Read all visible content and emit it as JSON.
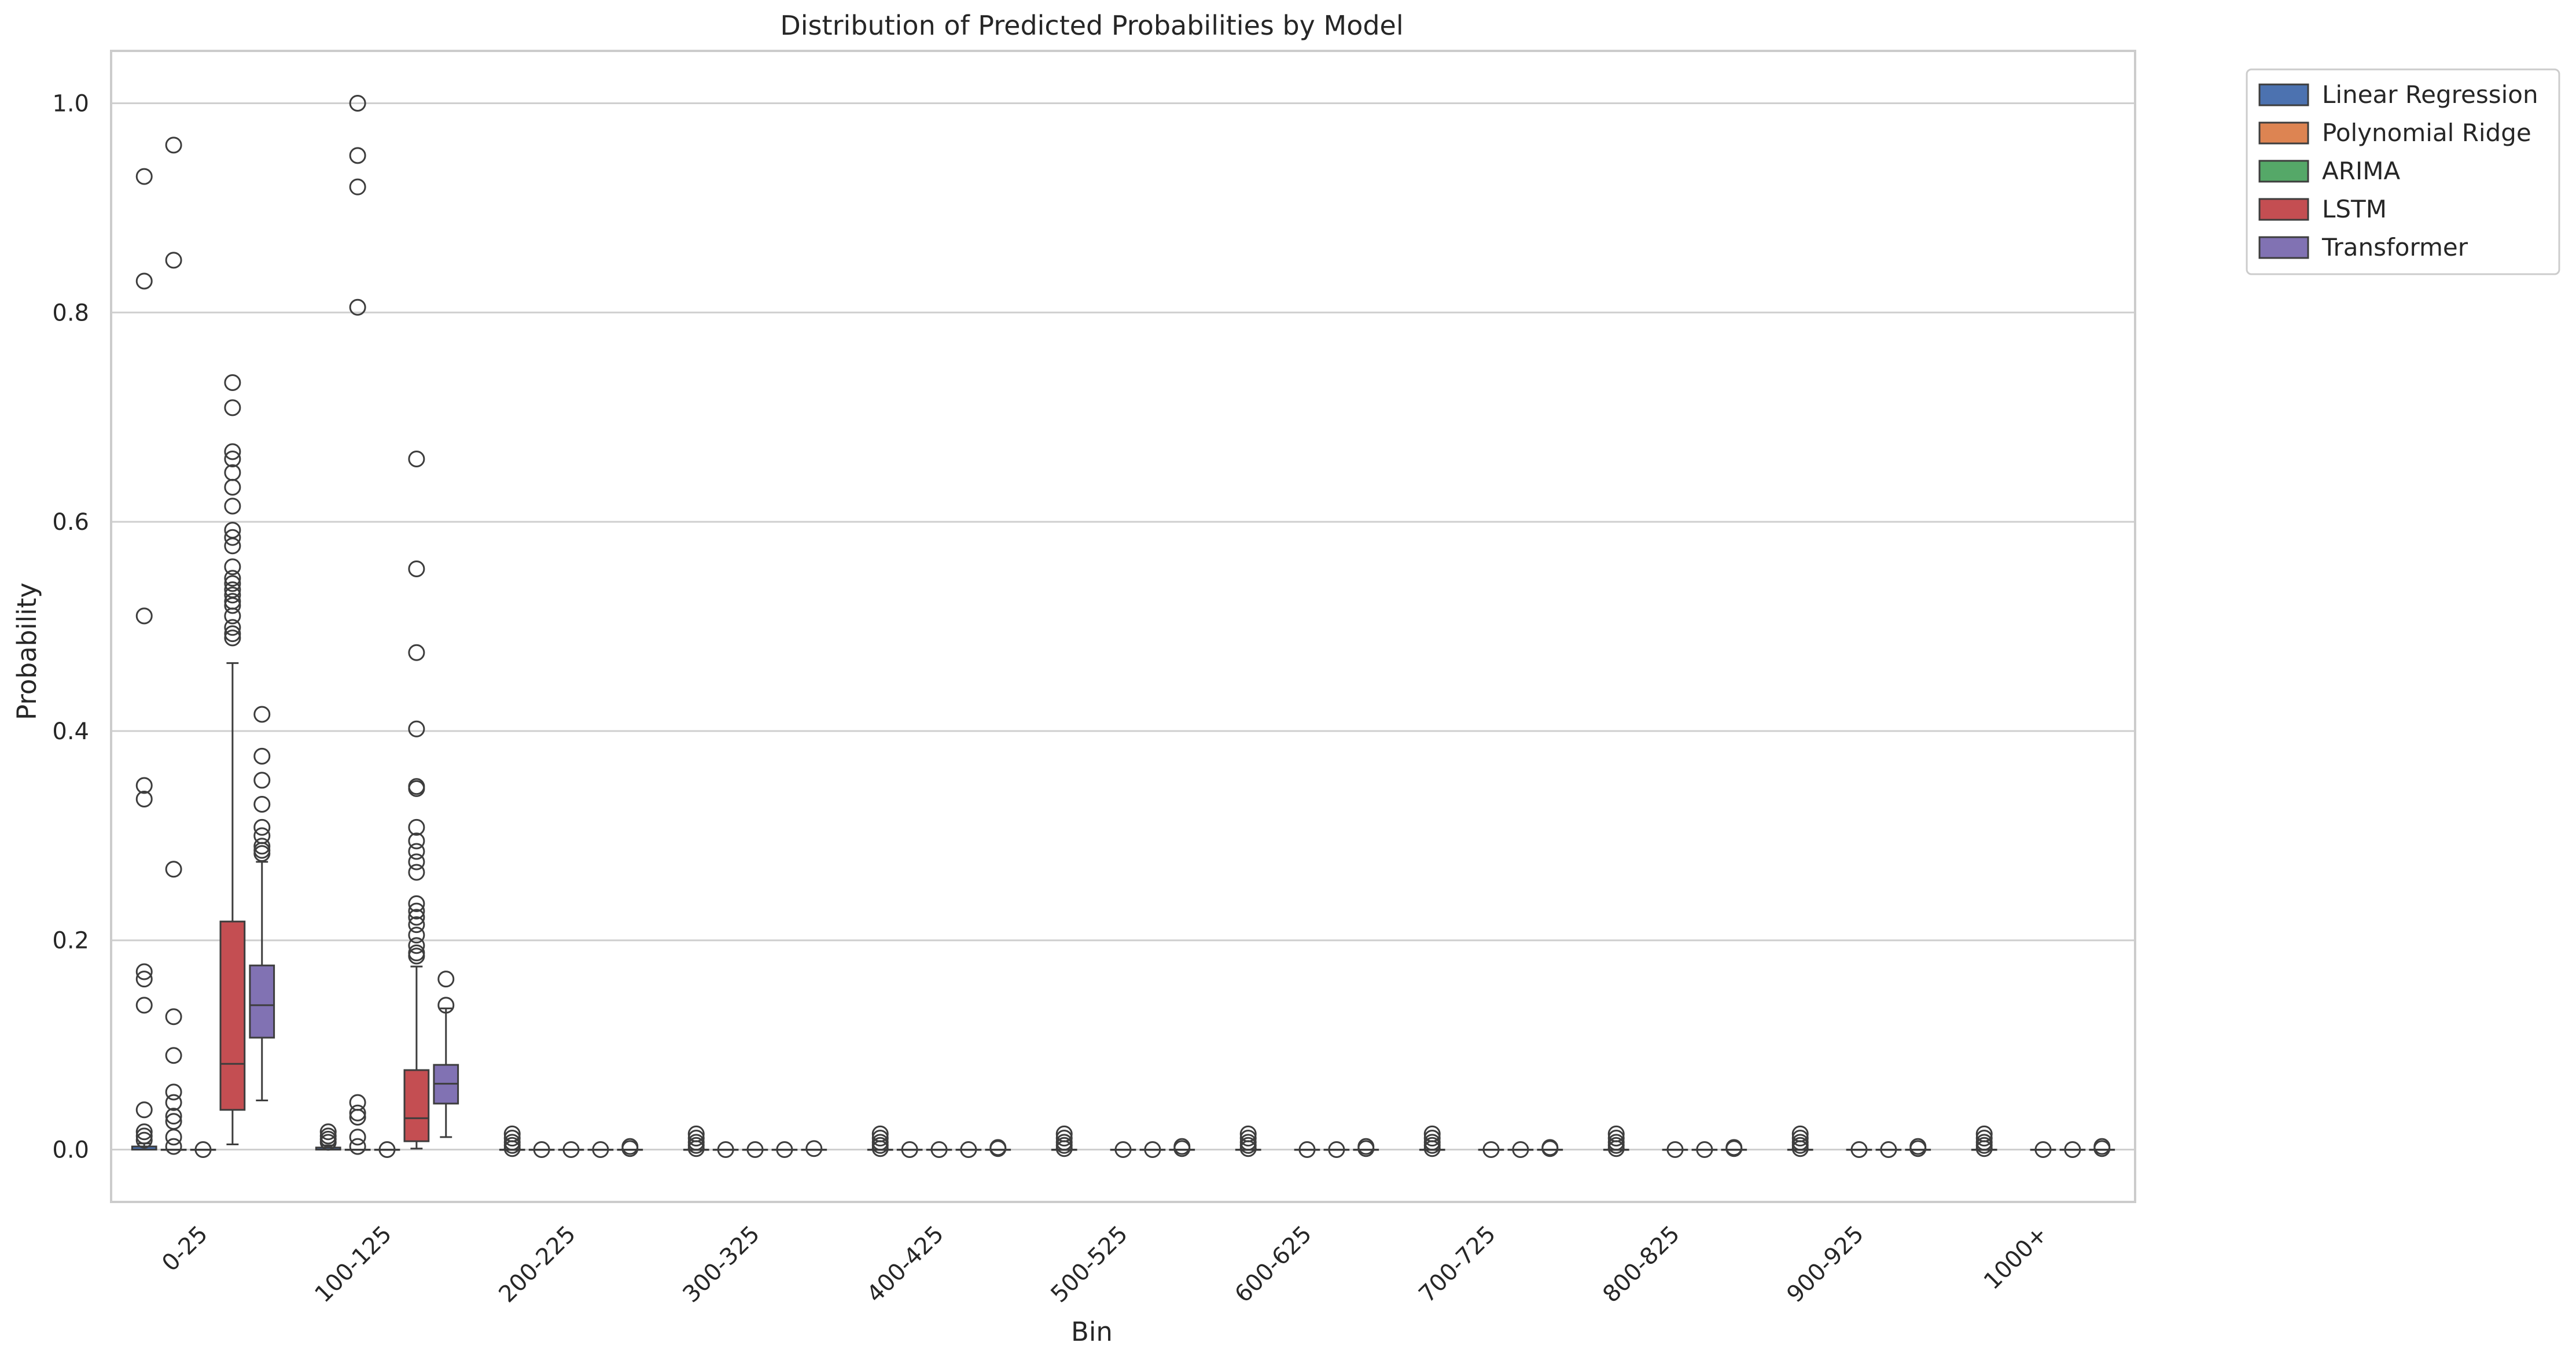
{
  "chart_data": {
    "type": "box",
    "title": "Distribution of Predicted Probabilities by Model",
    "xlabel": "Bin",
    "ylabel": "Probability",
    "ylim": [
      -0.05,
      1.05
    ],
    "yticks": [
      0.0,
      0.2,
      0.4,
      0.6,
      0.8,
      1.0
    ],
    "ytick_labels": [
      "0.0",
      "0.2",
      "0.4",
      "0.6",
      "0.8",
      "1.0"
    ],
    "grid": "horizontal",
    "legend_position": "outside-top-right",
    "categories": [
      "0-25",
      "100-125",
      "200-225",
      "300-325",
      "400-425",
      "500-525",
      "600-625",
      "700-725",
      "800-825",
      "900-925",
      "1000+"
    ],
    "series": [
      {
        "name": "Linear Regression",
        "color": "#4c72b0",
        "boxes": [
          {
            "q1": 0.0,
            "median": 0.0,
            "q3": 0.003,
            "whislo": 0.0,
            "whishi": 0.006,
            "fliers": [
              0.93,
              0.83,
              0.51,
              0.348,
              0.335,
              0.17,
              0.163,
              0.138,
              0.038,
              0.017,
              0.013,
              0.009
            ]
          },
          {
            "q1": 0.0,
            "median": 0.0,
            "q3": 0.002,
            "whislo": 0.0,
            "whishi": 0.004,
            "fliers": [
              0.017,
              0.013,
              0.01,
              0.007
            ]
          },
          {
            "q1": 0.0,
            "median": 0.0,
            "q3": 0.0,
            "whislo": 0.0,
            "whishi": 0.0,
            "fliers": [
              0.015,
              0.011,
              0.007,
              0.004,
              0.001
            ]
          },
          {
            "q1": 0.0,
            "median": 0.0,
            "q3": 0.0,
            "whislo": 0.0,
            "whishi": 0.0,
            "fliers": [
              0.015,
              0.011,
              0.007,
              0.004,
              0.001
            ]
          },
          {
            "q1": 0.0,
            "median": 0.0,
            "q3": 0.0,
            "whislo": 0.0,
            "whishi": 0.0,
            "fliers": [
              0.015,
              0.011,
              0.007,
              0.004,
              0.001
            ]
          },
          {
            "q1": 0.0,
            "median": 0.0,
            "q3": 0.0,
            "whislo": 0.0,
            "whishi": 0.0,
            "fliers": [
              0.015,
              0.011,
              0.007,
              0.004,
              0.001
            ]
          },
          {
            "q1": 0.0,
            "median": 0.0,
            "q3": 0.0,
            "whislo": 0.0,
            "whishi": 0.0,
            "fliers": [
              0.015,
              0.011,
              0.007,
              0.004,
              0.001
            ]
          },
          {
            "q1": 0.0,
            "median": 0.0,
            "q3": 0.0,
            "whislo": 0.0,
            "whishi": 0.0,
            "fliers": [
              0.015,
              0.011,
              0.007,
              0.004,
              0.001
            ]
          },
          {
            "q1": 0.0,
            "median": 0.0,
            "q3": 0.0,
            "whislo": 0.0,
            "whishi": 0.0,
            "fliers": [
              0.015,
              0.011,
              0.007,
              0.004,
              0.001
            ]
          },
          {
            "q1": 0.0,
            "median": 0.0,
            "q3": 0.0,
            "whislo": 0.0,
            "whishi": 0.0,
            "fliers": [
              0.015,
              0.011,
              0.007,
              0.004,
              0.001
            ]
          },
          {
            "q1": 0.0,
            "median": 0.0,
            "q3": 0.0,
            "whislo": 0.0,
            "whishi": 0.0,
            "fliers": [
              0.015,
              0.011,
              0.007,
              0.004,
              0.001
            ]
          }
        ]
      },
      {
        "name": "Polynomial Ridge",
        "color": "#dd8452",
        "boxes": [
          {
            "q1": 0.0,
            "median": 0.0,
            "q3": 0.0,
            "whislo": 0.0,
            "whishi": 0.0,
            "fliers": [
              0.96,
              0.85,
              0.268,
              0.127,
              0.09,
              0.055,
              0.045,
              0.032,
              0.027,
              0.012,
              0.003
            ]
          },
          {
            "q1": 0.0,
            "median": 0.0,
            "q3": 0.0,
            "whislo": 0.0,
            "whishi": 0.0,
            "fliers": [
              1.0,
              0.95,
              0.92,
              0.805,
              0.045,
              0.035,
              0.031,
              0.012,
              0.003
            ]
          },
          {
            "q1": 0.0,
            "median": 0.0,
            "q3": 0.0,
            "whislo": 0.0,
            "whishi": 0.0,
            "fliers": [
              0.0
            ]
          },
          {
            "q1": 0.0,
            "median": 0.0,
            "q3": 0.0,
            "whislo": 0.0,
            "whishi": 0.0,
            "fliers": [
              0.0
            ]
          },
          {
            "q1": 0.0,
            "median": 0.0,
            "q3": 0.0,
            "whislo": 0.0,
            "whishi": 0.0,
            "fliers": [
              0.0
            ]
          },
          null,
          null,
          null,
          null,
          null,
          null
        ]
      },
      {
        "name": "ARIMA",
        "color": "#55a868",
        "boxes": [
          {
            "q1": 0.0,
            "median": 0.0,
            "q3": 0.0,
            "whislo": 0.0,
            "whishi": 0.0,
            "fliers": [
              0.0
            ]
          },
          {
            "q1": 0.0,
            "median": 0.0,
            "q3": 0.0,
            "whislo": 0.0,
            "whishi": 0.0,
            "fliers": [
              0.0
            ]
          },
          {
            "q1": 0.0,
            "median": 0.0,
            "q3": 0.0,
            "whislo": 0.0,
            "whishi": 0.0,
            "fliers": [
              0.0
            ]
          },
          {
            "q1": 0.0,
            "median": 0.0,
            "q3": 0.0,
            "whislo": 0.0,
            "whishi": 0.0,
            "fliers": [
              0.0
            ]
          },
          {
            "q1": 0.0,
            "median": 0.0,
            "q3": 0.0,
            "whislo": 0.0,
            "whishi": 0.0,
            "fliers": [
              0.0
            ]
          },
          {
            "q1": 0.0,
            "median": 0.0,
            "q3": 0.0,
            "whislo": 0.0,
            "whishi": 0.0,
            "fliers": [
              0.0
            ]
          },
          {
            "q1": 0.0,
            "median": 0.0,
            "q3": 0.0,
            "whislo": 0.0,
            "whishi": 0.0,
            "fliers": [
              0.0
            ]
          },
          {
            "q1": 0.0,
            "median": 0.0,
            "q3": 0.0,
            "whislo": 0.0,
            "whishi": 0.0,
            "fliers": [
              0.0
            ]
          },
          {
            "q1": 0.0,
            "median": 0.0,
            "q3": 0.0,
            "whislo": 0.0,
            "whishi": 0.0,
            "fliers": [
              0.0
            ]
          },
          {
            "q1": 0.0,
            "median": 0.0,
            "q3": 0.0,
            "whislo": 0.0,
            "whishi": 0.0,
            "fliers": [
              0.0
            ]
          },
          {
            "q1": 0.0,
            "median": 0.0,
            "q3": 0.0,
            "whislo": 0.0,
            "whishi": 0.0,
            "fliers": [
              0.0
            ]
          }
        ]
      },
      {
        "name": "LSTM",
        "color": "#c44e52",
        "boxes": [
          {
            "q1": 0.038,
            "median": 0.082,
            "q3": 0.218,
            "whislo": 0.005,
            "whishi": 0.465,
            "fliers": [
              0.733,
              0.709,
              0.667,
              0.66,
              0.647,
              0.633,
              0.615,
              0.592,
              0.585,
              0.577,
              0.557,
              0.546,
              0.541,
              0.535,
              0.53,
              0.524,
              0.52,
              0.51,
              0.499,
              0.493,
              0.489
            ]
          },
          {
            "q1": 0.008,
            "median": 0.03,
            "q3": 0.076,
            "whislo": 0.001,
            "whishi": 0.175,
            "fliers": [
              0.66,
              0.555,
              0.475,
              0.402,
              0.347,
              0.345,
              0.308,
              0.295,
              0.285,
              0.275,
              0.265,
              0.235,
              0.228,
              0.222,
              0.215,
              0.205,
              0.195,
              0.188,
              0.185
            ]
          },
          {
            "q1": 0.0,
            "median": 0.0,
            "q3": 0.0,
            "whislo": 0.0,
            "whishi": 0.0,
            "fliers": [
              0.0
            ]
          },
          {
            "q1": 0.0,
            "median": 0.0,
            "q3": 0.0,
            "whislo": 0.0,
            "whishi": 0.0,
            "fliers": [
              0.0
            ]
          },
          {
            "q1": 0.0,
            "median": 0.0,
            "q3": 0.0,
            "whislo": 0.0,
            "whishi": 0.0,
            "fliers": [
              0.0
            ]
          },
          {
            "q1": 0.0,
            "median": 0.0,
            "q3": 0.0,
            "whislo": 0.0,
            "whishi": 0.0,
            "fliers": [
              0.0
            ]
          },
          {
            "q1": 0.0,
            "median": 0.0,
            "q3": 0.0,
            "whislo": 0.0,
            "whishi": 0.0,
            "fliers": [
              0.0
            ]
          },
          {
            "q1": 0.0,
            "median": 0.0,
            "q3": 0.0,
            "whislo": 0.0,
            "whishi": 0.0,
            "fliers": [
              0.0
            ]
          },
          {
            "q1": 0.0,
            "median": 0.0,
            "q3": 0.0,
            "whislo": 0.0,
            "whishi": 0.0,
            "fliers": [
              0.0
            ]
          },
          {
            "q1": 0.0,
            "median": 0.0,
            "q3": 0.0,
            "whislo": 0.0,
            "whishi": 0.0,
            "fliers": [
              0.0
            ]
          },
          {
            "q1": 0.0,
            "median": 0.0,
            "q3": 0.0,
            "whislo": 0.0,
            "whishi": 0.0,
            "fliers": [
              0.0
            ]
          }
        ]
      },
      {
        "name": "Transformer",
        "color": "#8172b3",
        "boxes": [
          {
            "q1": 0.107,
            "median": 0.138,
            "q3": 0.176,
            "whislo": 0.047,
            "whishi": 0.275,
            "fliers": [
              0.416,
              0.376,
              0.353,
              0.33,
              0.308,
              0.3,
              0.29,
              0.286,
              0.283
            ]
          },
          {
            "q1": 0.044,
            "median": 0.063,
            "q3": 0.081,
            "whislo": 0.012,
            "whishi": 0.135,
            "fliers": [
              0.163,
              0.138
            ]
          },
          {
            "q1": 0.0,
            "median": 0.0,
            "q3": 0.0,
            "whislo": 0.0,
            "whishi": 0.0,
            "fliers": [
              0.003,
              0.001
            ]
          },
          {
            "q1": 0.0,
            "median": 0.0,
            "q3": 0.0,
            "whislo": 0.0,
            "whishi": 0.0,
            "fliers": [
              0.001
            ]
          },
          {
            "q1": 0.0,
            "median": 0.0,
            "q3": 0.0,
            "whislo": 0.0,
            "whishi": 0.0,
            "fliers": [
              0.002,
              0.001
            ]
          },
          {
            "q1": 0.0,
            "median": 0.0,
            "q3": 0.0,
            "whislo": 0.0,
            "whishi": 0.0,
            "fliers": [
              0.003,
              0.001
            ]
          },
          {
            "q1": 0.0,
            "median": 0.0,
            "q3": 0.0,
            "whislo": 0.0,
            "whishi": 0.0,
            "fliers": [
              0.003,
              0.001
            ]
          },
          {
            "q1": 0.0,
            "median": 0.0,
            "q3": 0.0,
            "whislo": 0.0,
            "whishi": 0.0,
            "fliers": [
              0.002,
              0.001
            ]
          },
          {
            "q1": 0.0,
            "median": 0.0,
            "q3": 0.0,
            "whislo": 0.0,
            "whishi": 0.0,
            "fliers": [
              0.002,
              0.001
            ]
          },
          {
            "q1": 0.0,
            "median": 0.0,
            "q3": 0.0,
            "whislo": 0.0,
            "whishi": 0.0,
            "fliers": [
              0.003,
              0.001
            ]
          },
          {
            "q1": 0.0,
            "median": 0.0,
            "q3": 0.0,
            "whislo": 0.0,
            "whishi": 0.0,
            "fliers": [
              0.003,
              0.001
            ]
          }
        ]
      }
    ]
  }
}
